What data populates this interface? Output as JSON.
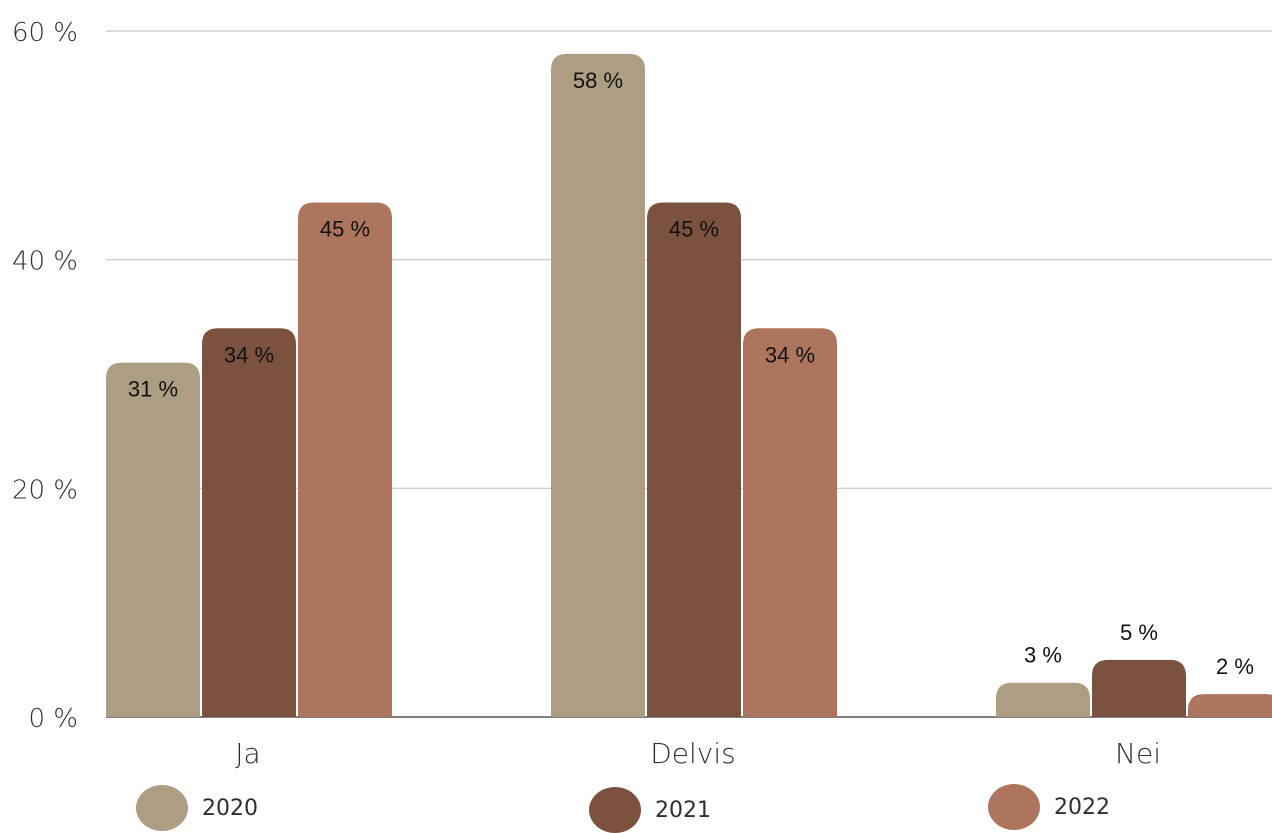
{
  "chart_data": {
    "type": "bar",
    "categories": [
      "Ja",
      "Delvis",
      "Nei"
    ],
    "series": [
      {
        "name": "2020",
        "values": [
          31,
          58,
          3
        ],
        "labels": [
          "31 %",
          "58 %",
          "3 %"
        ],
        "color": "#ad9d83"
      },
      {
        "name": "2021",
        "values": [
          34,
          45,
          5
        ],
        "labels": [
          "34 %",
          "45 %",
          "5 %"
        ],
        "color": "#7b5240"
      },
      {
        "name": "2022",
        "values": [
          45,
          34,
          2
        ],
        "labels": [
          "45 %",
          "34 %",
          "2 %"
        ],
        "color": "#ad755d"
      }
    ],
    "yticks": [
      "0 %",
      "20 %",
      "40 %",
      "60 %"
    ],
    "ytick_values": [
      0,
      20,
      40,
      60
    ],
    "ylim": [
      0,
      60
    ],
    "grid": true,
    "legend_position": "bottom"
  }
}
